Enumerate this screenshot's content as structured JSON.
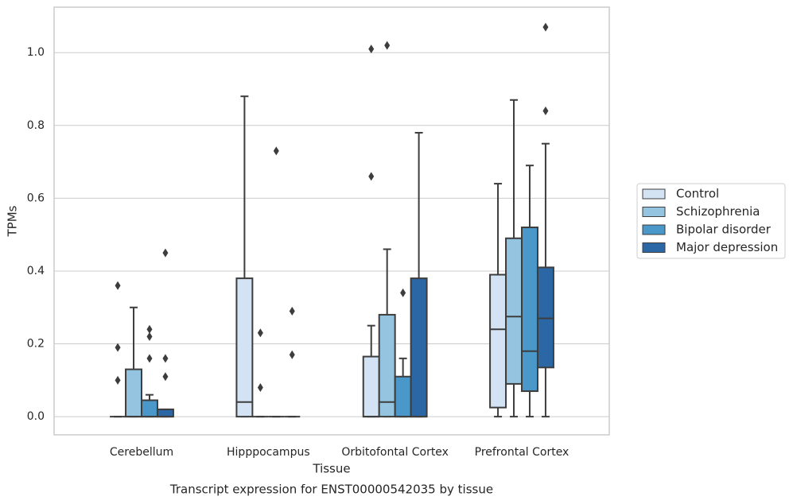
{
  "chart_data": {
    "type": "box",
    "title": "Transcript expression for ENST00000542035 by tissue",
    "xlabel": "Tissue",
    "ylabel": "TPMs",
    "categories": [
      "Cerebellum",
      "Hipppocampus",
      "Orbitofontal Cortex",
      "Prefrontal Cortex"
    ],
    "ylim": [
      -0.05,
      1.125
    ],
    "yticks": [
      {
        "value": 0,
        "label": "0.0"
      },
      0.2,
      0.4,
      0.6,
      0.8,
      {
        "value": 1,
        "label": "1.0"
      }
    ],
    "grid": true,
    "legend": "right",
    "series": [
      {
        "name": "Control",
        "color": "#d3e3f3",
        "boxes": [
          {
            "whislo": 0,
            "q1": 0,
            "med": 0,
            "q3": 0,
            "whishi": 0,
            "fliers": [
              0.36,
              0.19,
              0.1
            ]
          },
          {
            "whislo": 0,
            "q1": 0,
            "med": 0.04,
            "q3": 0.38,
            "whishi": 0.88
          },
          {
            "whislo": 0,
            "q1": 0,
            "med": 0,
            "q3": 0.165,
            "whishi": 0.25,
            "fliers": [
              0.66,
              1.01
            ]
          },
          {
            "whislo": 0,
            "q1": 0.025,
            "med": 0.24,
            "q3": 0.39,
            "whishi": 0.64
          }
        ]
      },
      {
        "name": "Schizophrenia",
        "color": "#94c4df",
        "boxes": [
          {
            "whislo": 0,
            "q1": 0,
            "med": 0,
            "q3": 0.13,
            "whishi": 0.3
          },
          {
            "whislo": 0,
            "q1": 0,
            "med": 0,
            "q3": 0,
            "whishi": 0,
            "fliers": [
              0.23,
              0.08
            ]
          },
          {
            "whislo": 0,
            "q1": 0,
            "med": 0.04,
            "q3": 0.28,
            "whishi": 0.46,
            "fliers": [
              1.02
            ]
          },
          {
            "whislo": 0,
            "q1": 0.09,
            "med": 0.275,
            "q3": 0.49,
            "whishi": 0.87
          }
        ]
      },
      {
        "name": "Bipolar disorder",
        "color": "#4a98c9",
        "boxes": [
          {
            "whislo": 0,
            "q1": 0,
            "med": 0,
            "q3": 0.045,
            "whishi": 0.06,
            "fliers": [
              0.24,
              0.22,
              0.16
            ]
          },
          {
            "whislo": 0,
            "q1": 0,
            "med": 0,
            "q3": 0,
            "whishi": 0,
            "fliers": [
              0.73
            ]
          },
          {
            "whislo": 0,
            "q1": 0,
            "med": 0,
            "q3": 0.11,
            "whishi": 0.16,
            "fliers": [
              0.34
            ]
          },
          {
            "whislo": 0,
            "q1": 0.07,
            "med": 0.18,
            "q3": 0.52,
            "whishi": 0.69
          }
        ]
      },
      {
        "name": "Major depression",
        "color": "#2b67a5",
        "boxes": [
          {
            "whislo": 0,
            "q1": 0,
            "med": 0,
            "q3": 0.02,
            "whishi": 0.02,
            "fliers": [
              0.45,
              0.16,
              0.11
            ]
          },
          {
            "whislo": 0,
            "q1": 0,
            "med": 0,
            "q3": 0,
            "whishi": 0,
            "fliers": [
              0.29,
              0.17
            ]
          },
          {
            "whislo": 0,
            "q1": 0,
            "med": 0,
            "q3": 0.38,
            "whishi": 0.78
          },
          {
            "whislo": 0,
            "q1": 0.135,
            "med": 0.27,
            "q3": 0.41,
            "whishi": 0.75,
            "fliers": [
              0.84,
              1.07
            ]
          }
        ]
      }
    ]
  }
}
